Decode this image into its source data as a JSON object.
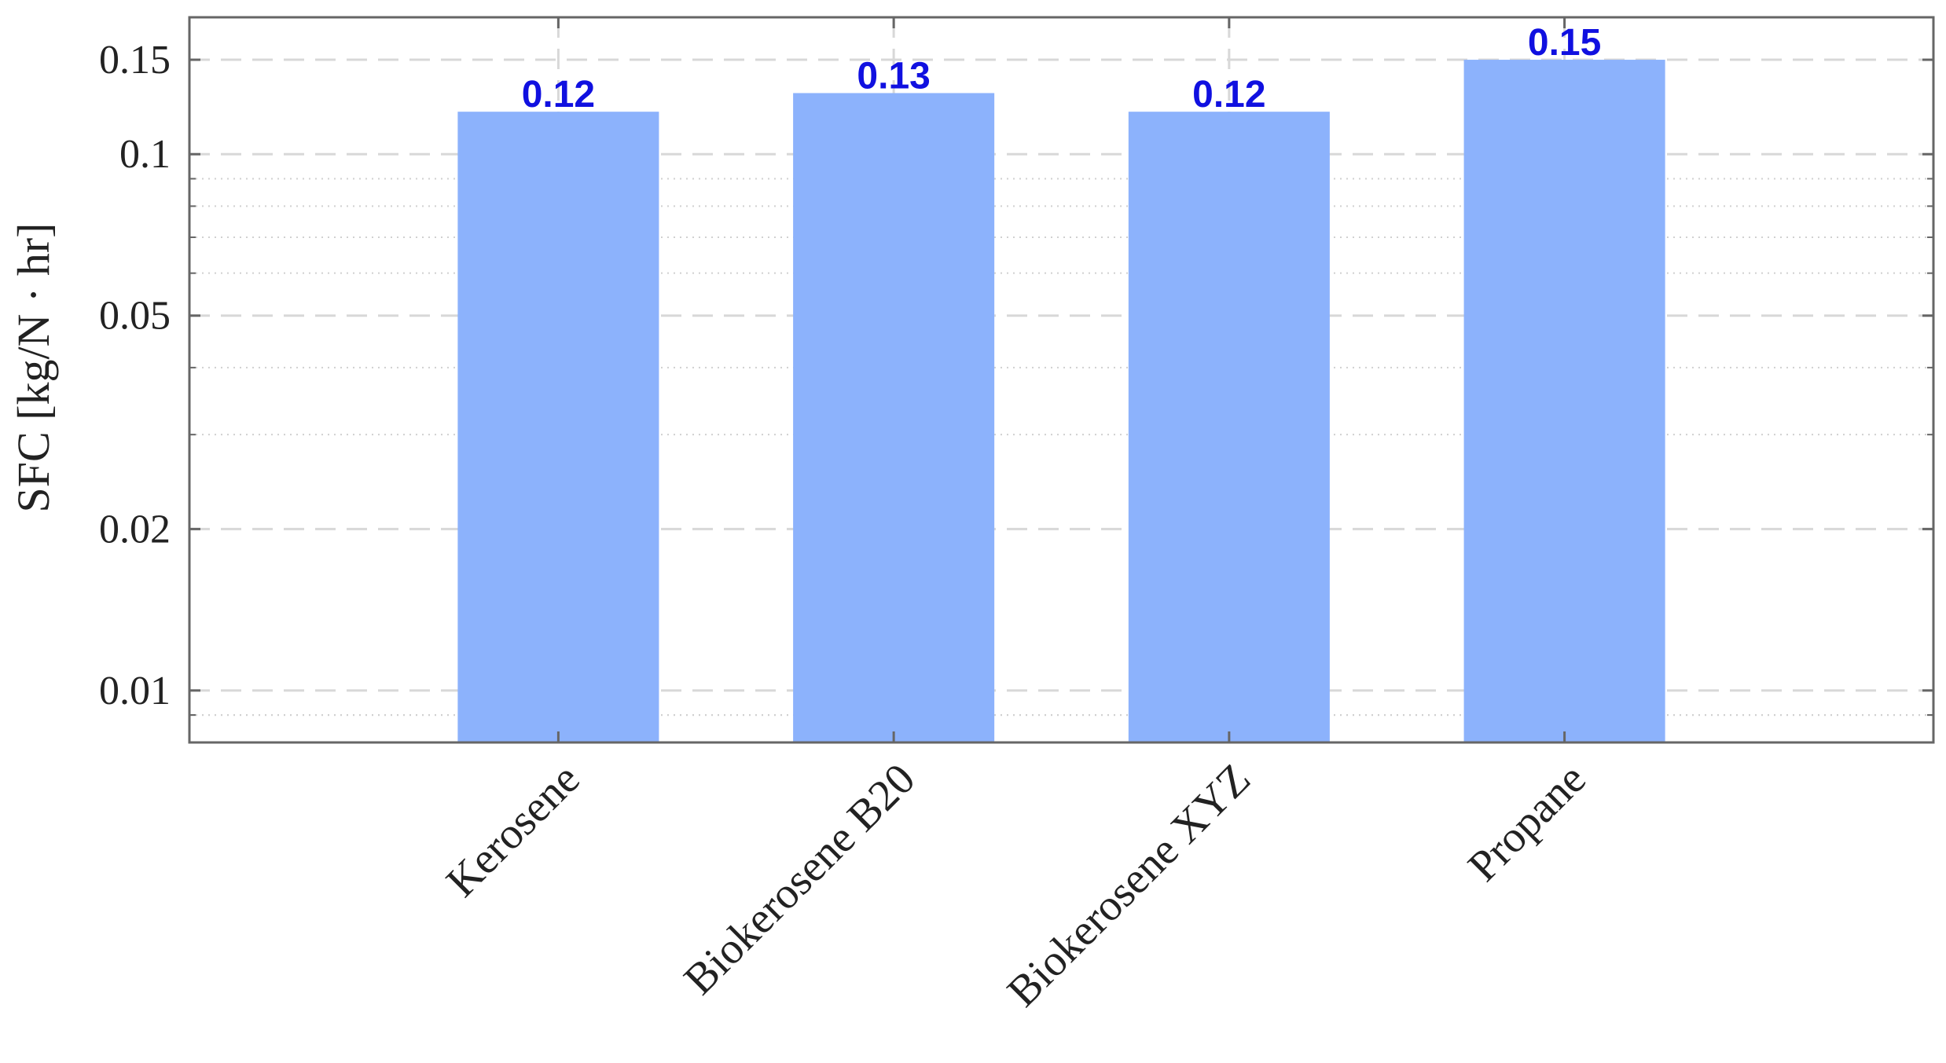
{
  "chart_data": {
    "type": "bar",
    "categories": [
      "Kerosene",
      "Biokerosene B20",
      "Biokerosene XYZ",
      "Propane"
    ],
    "values": [
      0.12,
      0.13,
      0.12,
      0.15
    ],
    "data_labels": [
      "0.12",
      "0.13",
      "0.12",
      "0.15"
    ],
    "title": "",
    "xlabel": "",
    "ylabel": "SFC  [kg/N · hr]",
    "yscale": "log",
    "ylim": [
      0.008,
      0.18
    ],
    "yticks": [
      0.01,
      0.02,
      0.05,
      0.1,
      0.15
    ],
    "ytick_labels": [
      "0.01",
      "0.02",
      "0.05",
      "0.1",
      "0.15"
    ],
    "grid": true,
    "legend": "none",
    "colors": {
      "bar": "#8cb2fc",
      "data_label": "#1010e0",
      "frame": "#666666",
      "grid_major": "#d8d8d8",
      "grid_minor": "#d0d0d0"
    }
  }
}
